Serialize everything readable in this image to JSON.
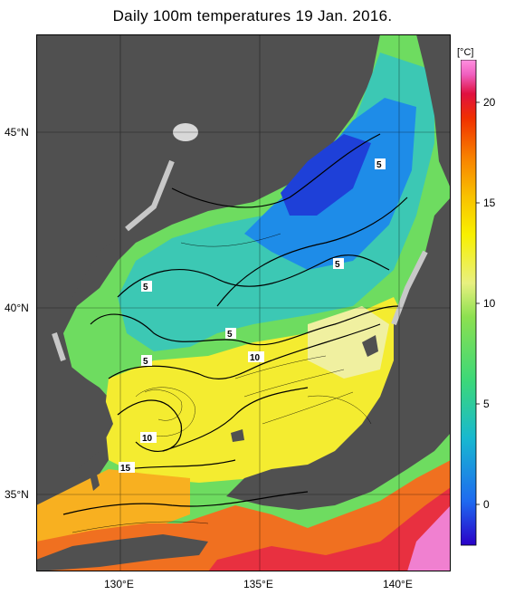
{
  "title": "Daily 100m temperatures 19 Jan. 2016.",
  "axes": {
    "lat_labels": [
      "45°N",
      "40°N",
      "35°N"
    ],
    "lon_labels": [
      "130°E",
      "135°E",
      "140°E"
    ]
  },
  "colorbar": {
    "unit": "[°C]",
    "ticks": [
      "20",
      "15",
      "10",
      "5",
      "0"
    ],
    "range": [
      -2,
      22
    ],
    "colors": [
      "#2a00c8",
      "#1e6af0",
      "#18b8d0",
      "#3cd878",
      "#8ce050",
      "#e8f080",
      "#f8f000",
      "#f8c000",
      "#f88000",
      "#f03000",
      "#e01040",
      "#f060c0",
      "#ff90e0"
    ]
  },
  "contour_labels": [
    "5",
    "5",
    "5",
    "5",
    "5",
    "10",
    "10",
    "15"
  ],
  "colors": {
    "land": "#505050",
    "coast_gray": "#c8c8c8",
    "cold": "#1e50e0",
    "warm": "#f8f000"
  }
}
